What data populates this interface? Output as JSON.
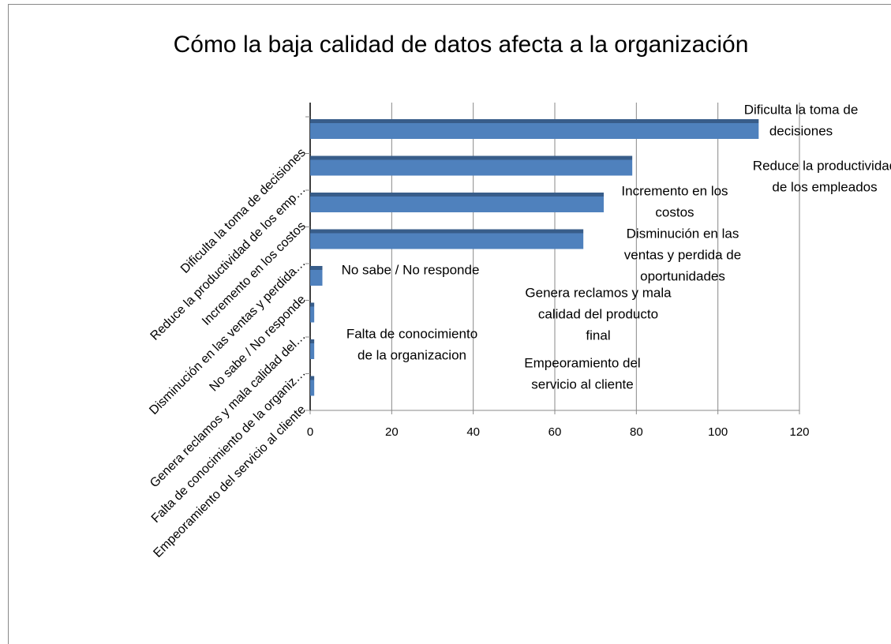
{
  "chart_data": {
    "type": "bar",
    "orientation": "horizontal",
    "title": "Cómo la baja calidad de datos afecta a la organización",
    "categories": [
      "Dificulta la toma de decisiones",
      "Reduce la productividad de los emp…",
      "Incremento en los costos",
      "Disminución en las ventas y perdida…",
      "No sabe / No responde",
      "Genera reclamos y mala calidad del…",
      "Falta de conocimiento de la organiz…",
      "Empeoramiento del servicio al cliente"
    ],
    "values": [
      110,
      79,
      72,
      67,
      3,
      1,
      1,
      1
    ],
    "data_labels": [
      [
        "Dificulta la toma de",
        "decisiones"
      ],
      [
        "Reduce la productividad",
        "de los empleados"
      ],
      [
        "Incremento en los",
        "costos"
      ],
      [
        "Disminución en las",
        "ventas y perdida de",
        "oportunidades"
      ],
      [
        "No sabe / No responde"
      ],
      [
        "Genera reclamos y mala",
        "calidad del producto",
        "final"
      ],
      [
        "Falta de conocimiento",
        "de la organizacion"
      ],
      [
        "Empeoramiento del",
        "servicio al cliente"
      ]
    ],
    "color": "#4f81bd",
    "xlim": [
      0,
      120
    ],
    "xticks": [
      0,
      20,
      40,
      60,
      80,
      100,
      120
    ],
    "grid": true
  }
}
